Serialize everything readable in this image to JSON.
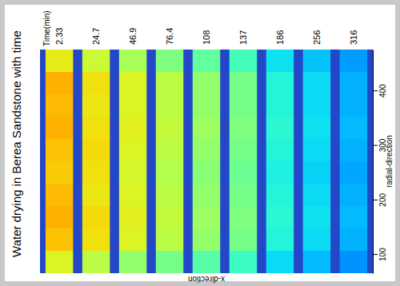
{
  "chart_data": {
    "type": "heatmap",
    "title": "Water drying in Berea Sandstone with time",
    "x_label": "Time(min)",
    "y_label": "radial-direction",
    "annotations": [
      "x-direction"
    ],
    "categories": [
      "2.33",
      "24.7",
      "46.9",
      "76.4",
      "108",
      "137",
      "186",
      "256",
      "316"
    ],
    "ylim": [
      65,
      475
    ],
    "yticks": [
      100,
      200,
      300,
      400
    ],
    "y_bins": [
      65,
      106,
      147,
      188,
      229,
      270,
      311,
      352,
      393,
      434,
      475
    ],
    "zlim": [
      0,
      1
    ],
    "cells": [
      [
        0.6,
        0.68,
        0.7,
        0.69,
        0.67,
        0.68,
        0.7,
        0.69,
        0.7,
        0.62
      ],
      [
        0.56,
        0.64,
        0.65,
        0.63,
        0.64,
        0.65,
        0.64,
        0.63,
        0.64,
        0.58
      ],
      [
        0.52,
        0.6,
        0.61,
        0.6,
        0.59,
        0.6,
        0.61,
        0.6,
        0.6,
        0.54
      ],
      [
        0.49,
        0.56,
        0.57,
        0.56,
        0.55,
        0.56,
        0.57,
        0.56,
        0.56,
        0.5
      ],
      [
        0.46,
        0.52,
        0.53,
        0.52,
        0.51,
        0.52,
        0.53,
        0.52,
        0.52,
        0.47
      ],
      [
        0.43,
        0.49,
        0.5,
        0.49,
        0.48,
        0.49,
        0.5,
        0.49,
        0.49,
        0.44
      ],
      [
        0.35,
        0.4,
        0.41,
        0.4,
        0.39,
        0.4,
        0.41,
        0.4,
        0.4,
        0.36
      ],
      [
        0.31,
        0.35,
        0.36,
        0.35,
        0.34,
        0.35,
        0.36,
        0.35,
        0.35,
        0.32
      ],
      [
        0.27,
        0.3,
        0.31,
        0.3,
        0.29,
        0.3,
        0.31,
        0.3,
        0.3,
        0.28
      ]
    ]
  }
}
